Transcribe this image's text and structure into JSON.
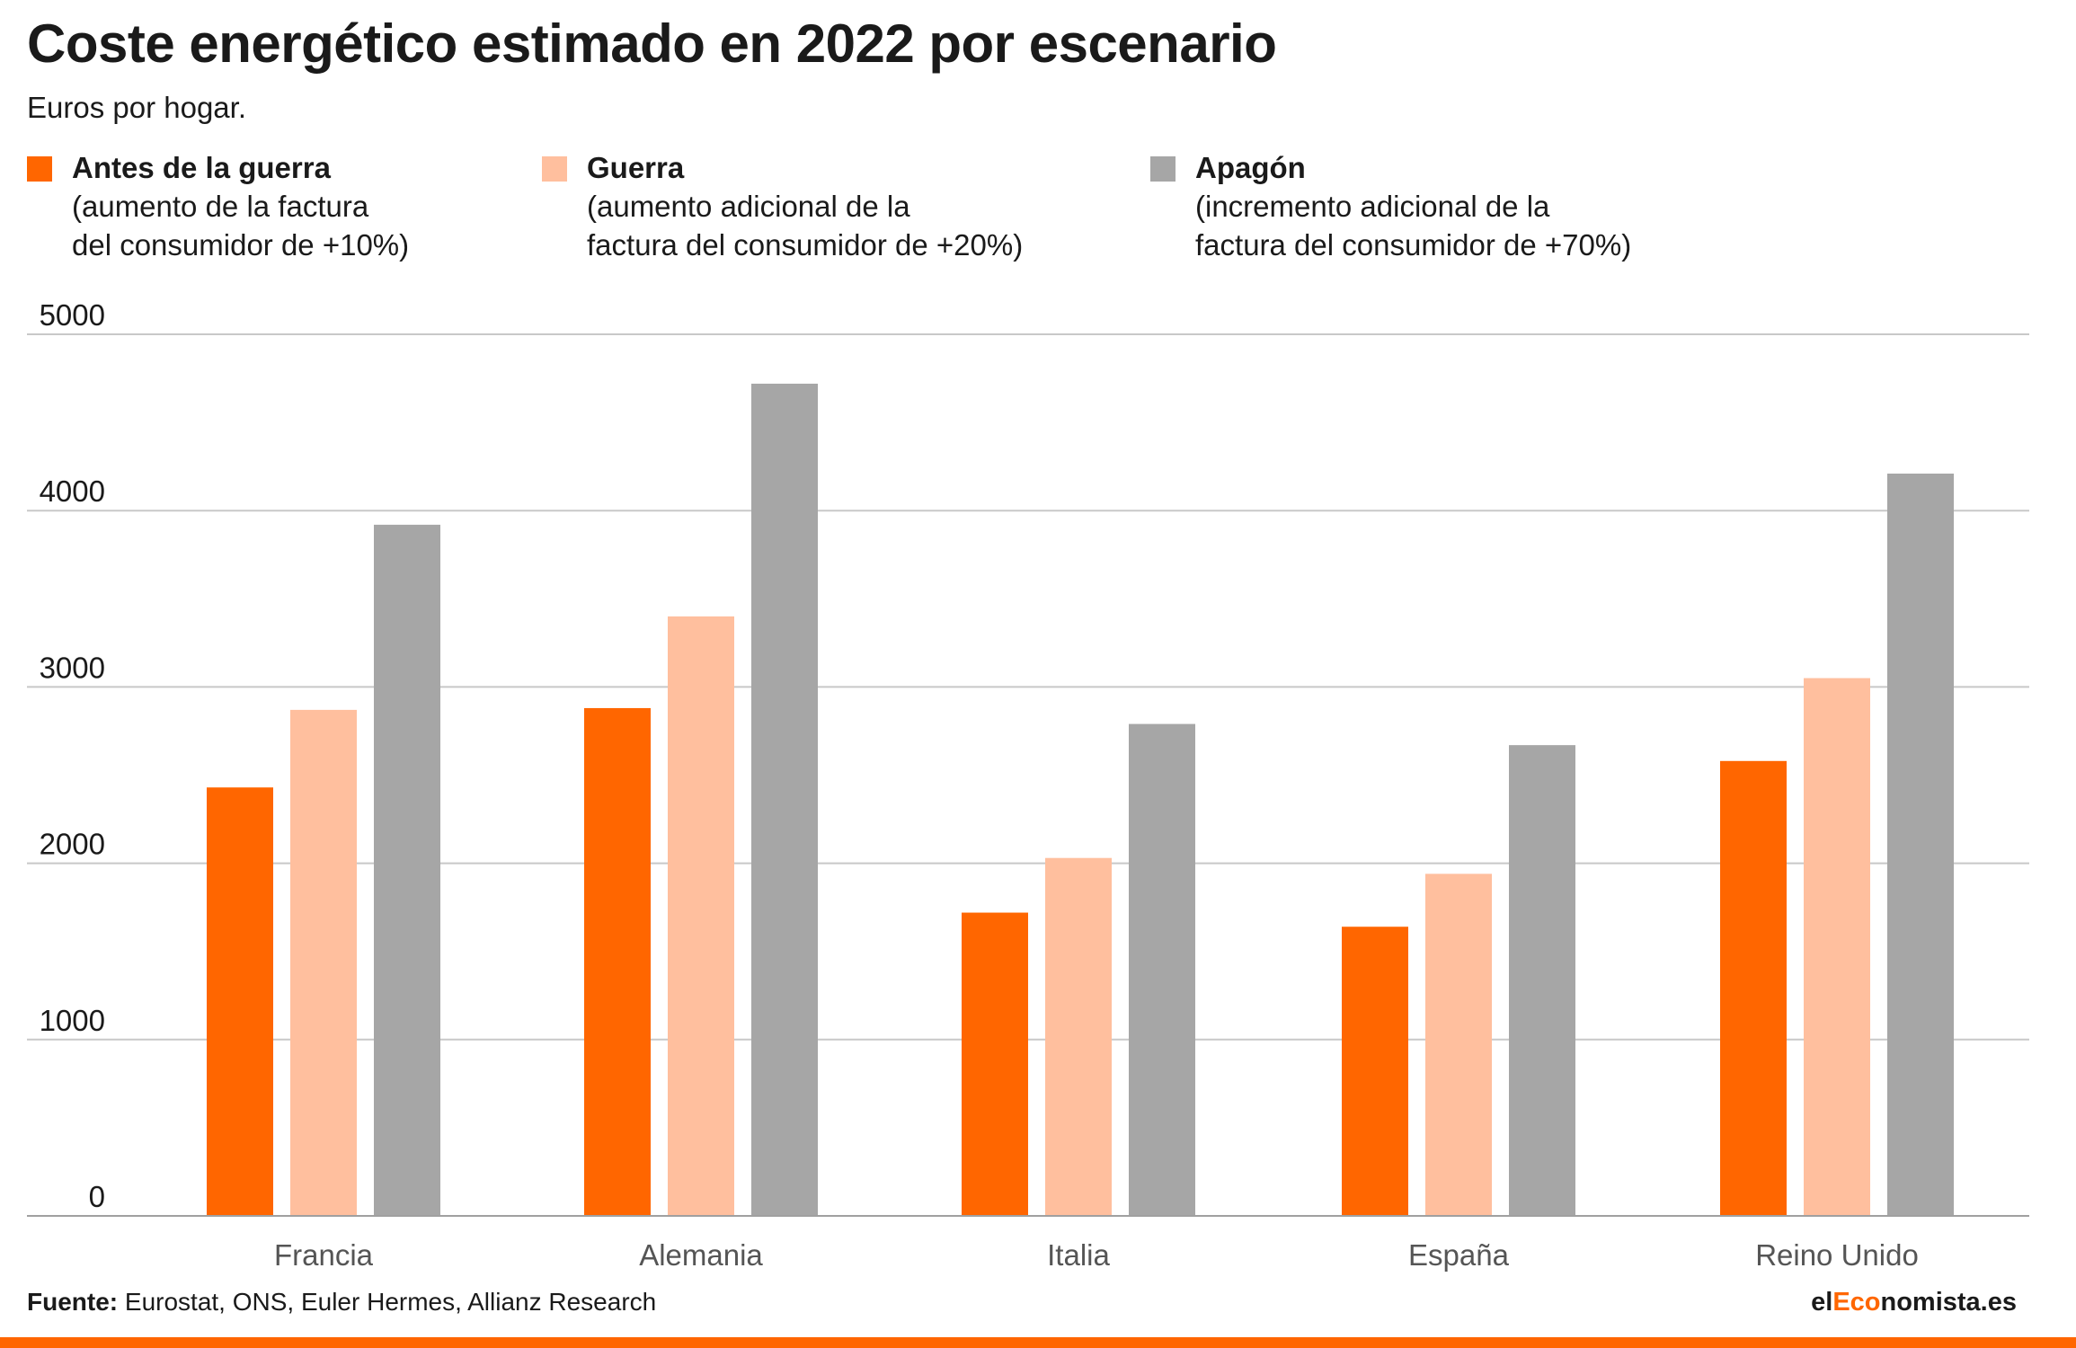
{
  "header": {
    "title": "Coste energético estimado en 2022 por escenario",
    "subtitle": "Euros por hogar."
  },
  "legend": [
    {
      "name": "Antes de la guerra",
      "desc1": "(aumento de la factura",
      "desc2": "del consumidor de +10%)",
      "color": "#ff6600"
    },
    {
      "name": "Guerra",
      "desc1": "(aumento adicional de la",
      "desc2": "factura del consumidor de +20%)",
      "color": "#ffbf9e"
    },
    {
      "name": "Apagón",
      "desc1": "(incremento adicional de la",
      "desc2": "factura del consumidor de +70%)",
      "color": "#a6a6a6"
    }
  ],
  "footer": {
    "source_label": "Fuente:",
    "source_text": " Eurostat, ONS, Euler Hermes, Allianz Research",
    "brand_prefix": "el",
    "brand_accent": "Eco",
    "brand_suffix": "nomista.es"
  },
  "chart_data": {
    "type": "bar",
    "categories": [
      "Francia",
      "Alemania",
      "Italia",
      "España",
      "Reino Unido"
    ],
    "series": [
      {
        "name": "Antes de la guerra",
        "color": "#ff6600",
        "values": [
          2430,
          2880,
          1720,
          1640,
          2580
        ]
      },
      {
        "name": "Guerra",
        "color": "#ffbf9e",
        "values": [
          2870,
          3400,
          2030,
          1940,
          3050
        ]
      },
      {
        "name": "Apagón",
        "color": "#a6a6a6",
        "values": [
          3920,
          4720,
          2790,
          2670,
          4210
        ]
      }
    ],
    "ylim": [
      0,
      5000
    ],
    "yticks": [
      0,
      1000,
      2000,
      3000,
      4000,
      5000
    ],
    "grid": true,
    "legend_position": "top"
  }
}
